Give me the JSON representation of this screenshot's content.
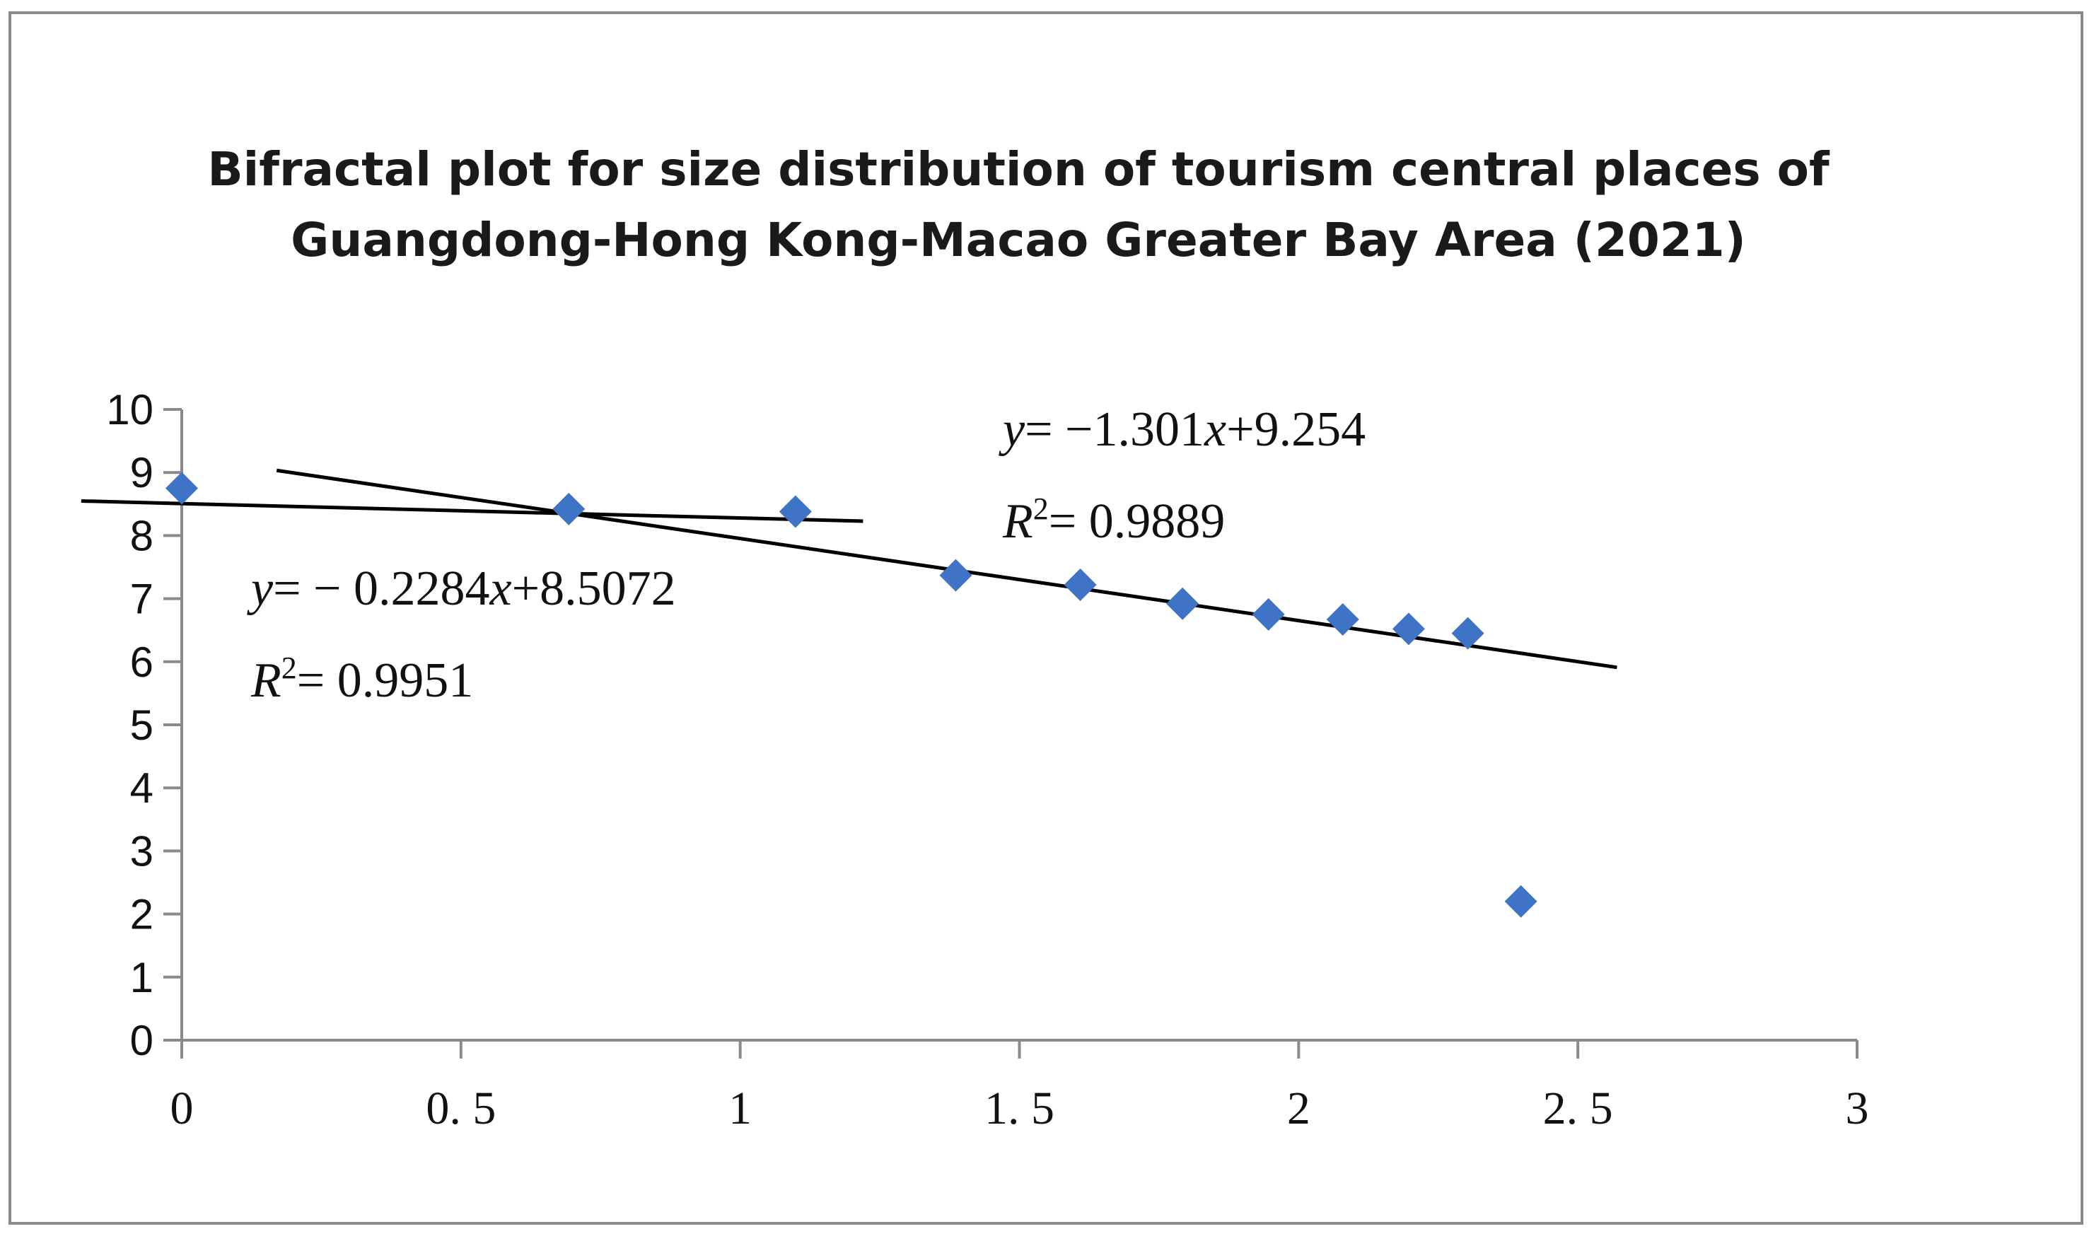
{
  "chart_data": {
    "type": "scatter",
    "title_lines": [
      "Bifractal plot for size distribution of tourism central places of",
      "Guangdong-Hong Kong-Macao Greater Bay Area (2021)"
    ],
    "xlim": [
      0,
      3
    ],
    "ylim": [
      0,
      10
    ],
    "x_ticks": [
      0,
      0.5,
      1,
      1.5,
      2,
      2.5,
      3
    ],
    "x_tick_labels": [
      "0",
      "0. 5",
      "1",
      "1. 5",
      "2",
      "2. 5",
      "3"
    ],
    "y_ticks": [
      0,
      1,
      2,
      3,
      4,
      5,
      6,
      7,
      8,
      9,
      10
    ],
    "y_tick_labels": [
      "0",
      "1",
      "2",
      "3",
      "4",
      "5",
      "6",
      "7",
      "8",
      "9",
      "10"
    ],
    "series": [
      {
        "name": "tourism central places",
        "marker": "diamond",
        "color": "#3f73c6",
        "x": [
          0,
          0.693,
          1.099,
          1.386,
          1.609,
          1.792,
          1.946,
          2.079,
          2.197,
          2.303,
          2.398
        ],
        "y": [
          8.75,
          8.42,
          8.38,
          7.37,
          7.22,
          6.92,
          6.75,
          6.67,
          6.52,
          6.45,
          2.2
        ]
      }
    ],
    "fit_lines": [
      {
        "slope": -0.2284,
        "intercept": 8.5072,
        "x_start": -0.18,
        "x_end": 1.22,
        "eq_prefix": "y",
        "eq_rest": "= − 0.2284",
        "eq_var": "x",
        "eq_tail": "+8.5072",
        "r2_prefix": "R",
        "r2_sup": "2",
        "r2_rest": "= 0.9951"
      },
      {
        "slope": -1.301,
        "intercept": 9.254,
        "x_start": 0.17,
        "x_end": 2.57,
        "eq_prefix": "y",
        "eq_rest": "= −1.301",
        "eq_var": "x",
        "eq_tail": "+9.254",
        "r2_prefix": "R",
        "r2_sup": "2",
        "r2_rest": "= 0.9889"
      }
    ],
    "xlabel": "",
    "ylabel": ""
  }
}
